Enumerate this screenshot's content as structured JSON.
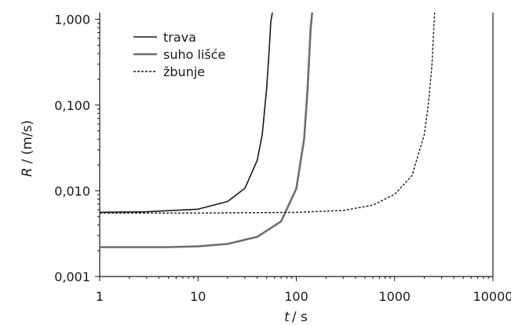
{
  "chart_data": {
    "type": "line",
    "title": "",
    "xlabel_var": "t",
    "xlabel_unit": "/ s",
    "ylabel_var": "R",
    "ylabel_unit": "/ (m/s)",
    "x_scale": "log",
    "y_scale": "log",
    "xlim": [
      1,
      10000
    ],
    "ylim": [
      0.001,
      1.2
    ],
    "x_ticks": [
      1,
      10,
      100,
      1000,
      10000
    ],
    "x_tick_labels": [
      "1",
      "10",
      "100",
      "1000",
      "10000"
    ],
    "y_ticks": [
      0.001,
      0.01,
      0.1,
      1
    ],
    "y_tick_labels": [
      "0,001",
      "0,010",
      "0,100",
      "1,000"
    ],
    "grid": false,
    "legend_position": "top-left",
    "series": [
      {
        "name": "trava",
        "color": "#1a1a1a",
        "style": "solid",
        "x": [
          1,
          3,
          10,
          20,
          30,
          40,
          45,
          50,
          53,
          55,
          57
        ],
        "y": [
          0.0056,
          0.0057,
          0.0061,
          0.0075,
          0.0107,
          0.0226,
          0.045,
          0.16,
          0.44,
          0.93,
          1.2
        ]
      },
      {
        "name": "suho lišće",
        "color": "#6e6e6e",
        "style": "solid",
        "x": [
          1,
          5,
          10,
          20,
          40,
          70,
          100,
          120,
          130,
          140,
          145
        ],
        "y": [
          0.0022,
          0.0022,
          0.00225,
          0.0024,
          0.0029,
          0.0044,
          0.0106,
          0.04,
          0.15,
          0.8,
          1.2
        ]
      },
      {
        "name": "žbunje",
        "color": "#1a1a1a",
        "style": "dashed",
        "x": [
          1,
          10,
          100,
          300,
          600,
          1000,
          1500,
          2000,
          2200,
          2400,
          2550
        ],
        "y": [
          0.0055,
          0.0055,
          0.0056,
          0.0059,
          0.0068,
          0.0091,
          0.015,
          0.045,
          0.1,
          0.3,
          1.2
        ]
      }
    ]
  }
}
